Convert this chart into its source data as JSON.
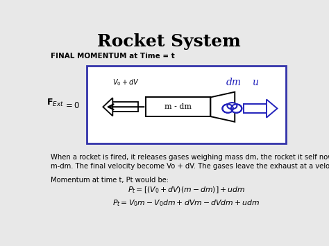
{
  "title": "Rocket System",
  "title_fontsize": 18,
  "title_fontweight": "bold",
  "subtitle": "FINAL MOMENTUM at Time = t",
  "subtitle_fontsize": 7.5,
  "body_text1": "When a rocket is fired, it releases gases weighing mass dm, the rocket it self now weighs",
  "body_text2": "m-dm. The final velocity become Vo + dV. The gases leave the exhaust at a velocity u.",
  "momentum_label": "Momentum at time t, Pt would be:",
  "eq1": "$P_t = [(V_0 + dV)(m - dm)] + udm$",
  "eq2": "$P_t = V_0m - V_0dm + dVm - dVdm + udm$",
  "v_label": "$V_0 + dV$",
  "rocket_label": "m - dm",
  "dm_label": "dm",
  "u_label": "u",
  "box_color": "#3333aa",
  "black": "#000000",
  "blue_color": "#2222bb",
  "white": "#ffffff",
  "light_gray": "#e8e8e8"
}
